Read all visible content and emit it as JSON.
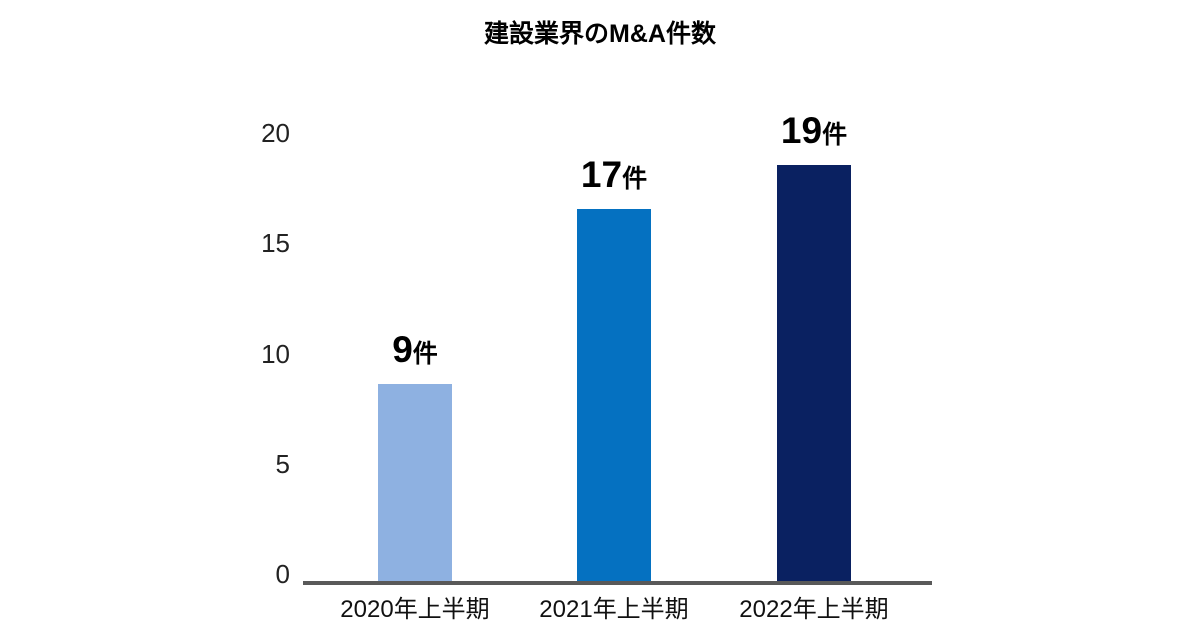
{
  "title": "建設業界のM&A件数",
  "colors": {
    "axis": "#595959",
    "title_text": "#000000",
    "tick_text": "#222222",
    "category_text": "#111111",
    "value_text": "#000000"
  },
  "chart_data": {
    "type": "bar",
    "title": "建設業界のM&A件数",
    "categories": [
      "2020年上半期",
      "2021年上半期",
      "2022年上半期"
    ],
    "values": [
      9,
      17,
      19
    ],
    "value_unit": "件",
    "value_labels": [
      "9件",
      "17件",
      "19件"
    ],
    "bar_colors": [
      "#8EB1E1",
      "#0571C1",
      "#0A2161"
    ],
    "yticks": [
      0,
      5,
      10,
      15,
      20
    ],
    "ylim": [
      0,
      20
    ],
    "xlabel": "",
    "ylabel": "",
    "grid": false,
    "legend": false
  }
}
